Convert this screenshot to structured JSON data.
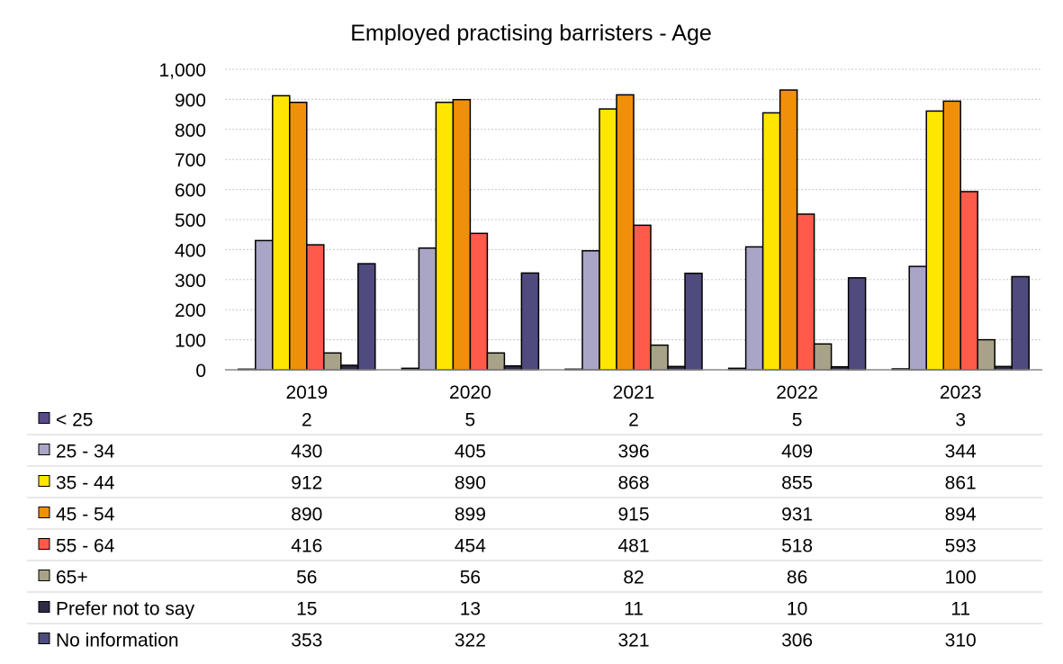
{
  "chart_data": {
    "type": "bar",
    "title": "Employed practising barristers - Age",
    "categories": [
      "2019",
      "2020",
      "2021",
      "2022",
      "2023"
    ],
    "ylim": [
      0,
      1000
    ],
    "yticks": [
      "0",
      "100",
      "200",
      "300",
      "400",
      "500",
      "600",
      "700",
      "800",
      "900",
      "1,000"
    ],
    "grid": true,
    "legend": "data-table-below",
    "series": [
      {
        "name": "< 25",
        "color": "#5b4a8b",
        "values": [
          2,
          5,
          2,
          5,
          3
        ],
        "labels": [
          "2",
          "5",
          "2",
          "5",
          "3"
        ]
      },
      {
        "name": "25 - 34",
        "color": "#a9a5c6",
        "values": [
          430,
          405,
          396,
          409,
          344
        ],
        "labels": [
          "430",
          "405",
          "396",
          "409",
          "344"
        ]
      },
      {
        "name": "35 - 44",
        "color": "#ffe600",
        "values": [
          912,
          890,
          868,
          855,
          861
        ],
        "labels": [
          "912",
          "890",
          "868",
          "855",
          "861"
        ]
      },
      {
        "name": "45 - 54",
        "color": "#f0900a",
        "values": [
          890,
          899,
          915,
          931,
          894
        ],
        "labels": [
          "890",
          "899",
          "915",
          "931",
          "894"
        ]
      },
      {
        "name": "55 - 64",
        "color": "#ff5a4a",
        "values": [
          416,
          454,
          481,
          518,
          593
        ],
        "labels": [
          "416",
          "454",
          "481",
          "518",
          "593"
        ]
      },
      {
        "name": "65+",
        "color": "#a8a388",
        "values": [
          56,
          56,
          82,
          86,
          100
        ],
        "labels": [
          "56",
          "56",
          "82",
          "86",
          "100"
        ]
      },
      {
        "name": "Prefer not to say",
        "color": "#2e2a46",
        "values": [
          15,
          13,
          11,
          10,
          11
        ],
        "labels": [
          "15",
          "13",
          "11",
          "10",
          "11"
        ]
      },
      {
        "name": "No information",
        "color": "#4f4b7e",
        "values": [
          353,
          322,
          321,
          306,
          310
        ],
        "labels": [
          "353",
          "322",
          "321",
          "306",
          "310"
        ]
      }
    ]
  }
}
